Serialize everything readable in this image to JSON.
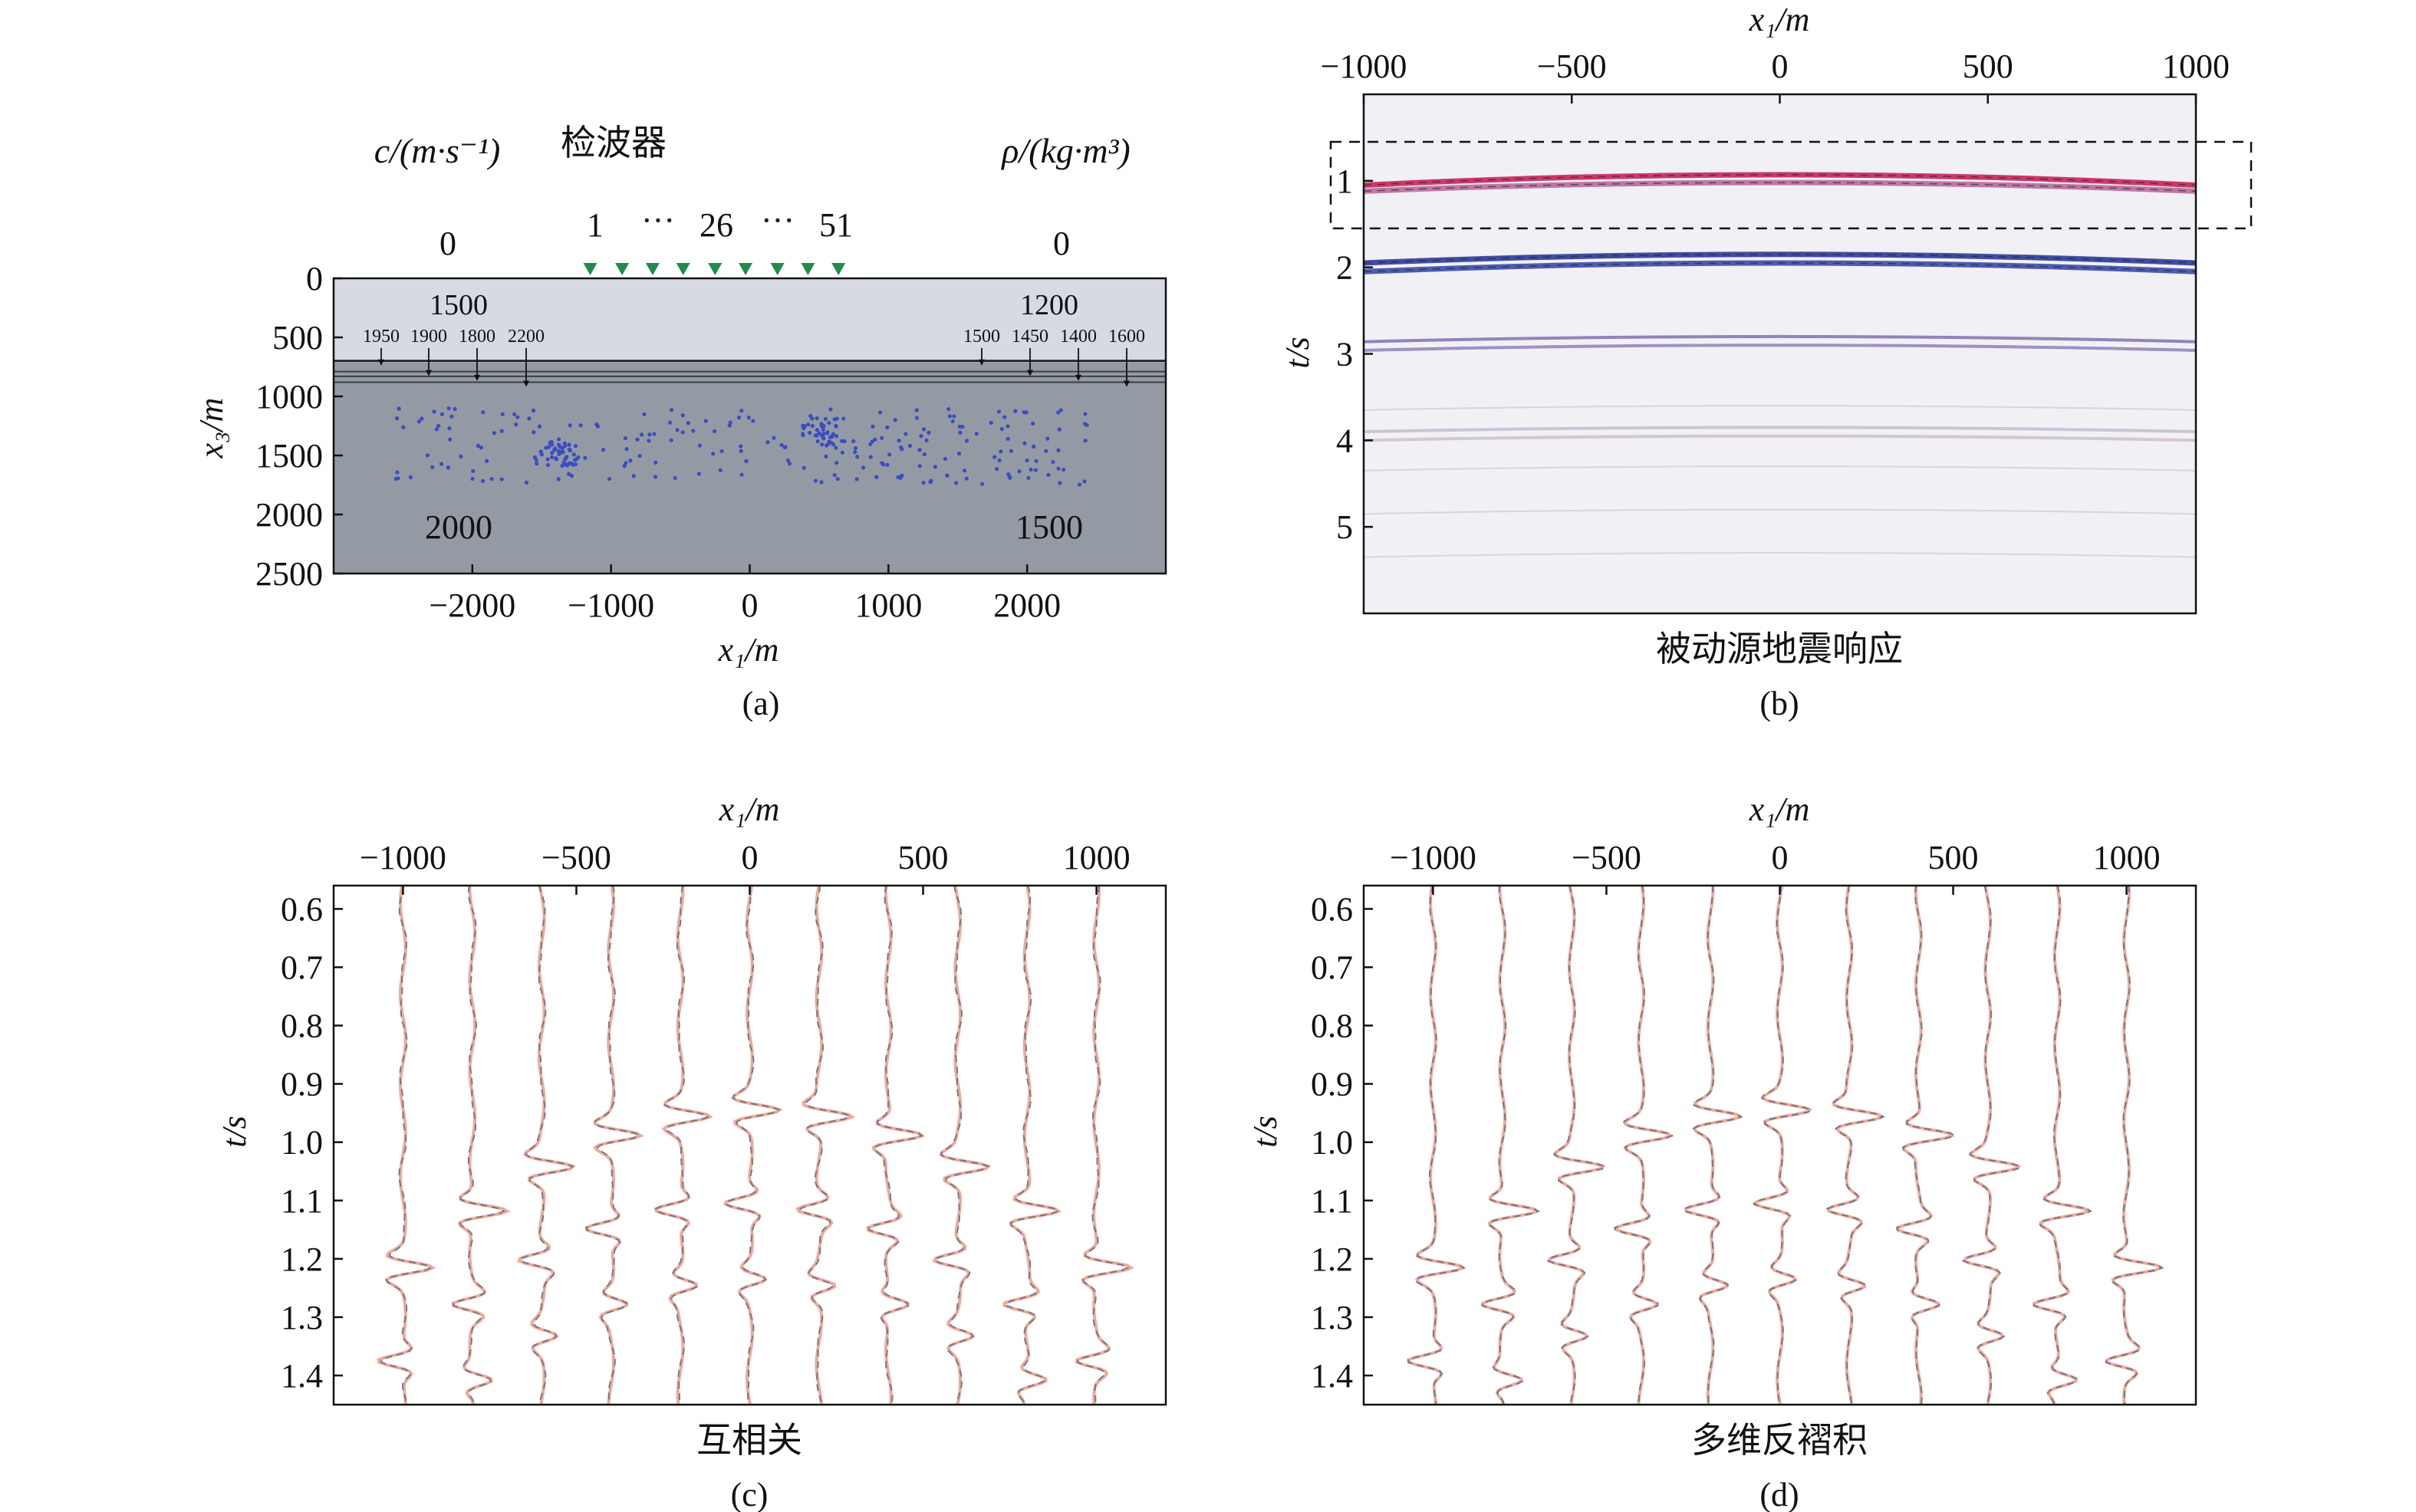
{
  "figure": {
    "panel_a": {
      "caption": "(a)",
      "left_header": "c/(m·s⁻¹)",
      "center_header": "检波器",
      "right_header": "ρ/(kg·m³)",
      "left_surface_value": "0",
      "right_surface_value": "0",
      "receiver_label_first": "1",
      "receiver_label_mid": "26",
      "receiver_label_last": "51",
      "ellipsis": "···",
      "receiver_color": "#1e8c4a",
      "layer1_left": "1500",
      "layer1_right": "1200",
      "interface_labels_left": [
        "1950",
        "1900",
        "1800",
        "2200"
      ],
      "interface_labels_right": [
        "1500",
        "1450",
        "1400",
        "1600"
      ],
      "halfspace_left": "2000",
      "halfspace_right": "1500",
      "xlabel": "x₁/m",
      "ylabel": "x₃/m",
      "upper_layer_color": "#d7dae2",
      "halfspace_color": "#939aa3",
      "source_color": "#3a4cc4"
    },
    "panel_b": {
      "caption": "(b)",
      "subtitle": "被动源地震响应",
      "xlabel": "x₁/m",
      "ylabel": "t/s"
    },
    "panel_c": {
      "caption": "(c)",
      "subtitle": "互相关",
      "xlabel": "x₁/m",
      "ylabel": "t/s"
    },
    "panel_d": {
      "caption": "(d)",
      "subtitle": "多维反褶积",
      "xlabel": "x₁/m",
      "ylabel": "t/s"
    }
  },
  "chart_data": [
    {
      "panel": "a",
      "type": "scatter",
      "xlim": [
        -3000,
        3000
      ],
      "ylim": [
        0,
        2500
      ],
      "y_inverted": true,
      "xticks": [
        -2000,
        -1000,
        0,
        1000,
        2000
      ],
      "xtick_labels": [
        "−2000",
        "−1000",
        "0",
        "1000",
        "2000"
      ],
      "yticks": [
        0,
        500,
        1000,
        1500,
        2000,
        2500
      ],
      "ytick_labels": [
        "0",
        "500",
        "1000",
        "1500",
        "2000",
        "2500"
      ],
      "receivers_x": [
        -1150,
        -920,
        -700,
        -480,
        -250,
        -30,
        200,
        420,
        640
      ],
      "interfaces_depth": [
        700,
        790,
        830,
        880
      ],
      "source_region": {
        "x": [
          -2550,
          2450
        ],
        "depth": [
          1100,
          1750
        ]
      },
      "source_clusters": [
        {
          "x": -1350,
          "depth": 1500
        },
        {
          "x": 500,
          "depth": 1300
        }
      ]
    },
    {
      "panel": "b",
      "type": "heatmap",
      "xlim": [
        -1000,
        1000
      ],
      "ylim": [
        0,
        6
      ],
      "y_inverted": true,
      "xticks": [
        -1000,
        -500,
        0,
        500,
        1000
      ],
      "xtick_labels": [
        "−1000",
        "−500",
        "0",
        "500",
        "1000"
      ],
      "yticks": [
        1,
        2,
        3,
        4,
        5
      ],
      "ytick_labels": [
        "1",
        "2",
        "3",
        "4",
        "5"
      ],
      "events": [
        {
          "t0": 0.93,
          "tedge": 1.05,
          "color": "#c8245a"
        },
        {
          "t0": 1.02,
          "tedge": 1.12,
          "color": "#b86a9c"
        },
        {
          "t0": 1.85,
          "tedge": 1.95,
          "color": "#2c3a9a"
        },
        {
          "t0": 1.95,
          "tedge": 2.05,
          "color": "#3c4aa8"
        },
        {
          "t0": 2.8,
          "tedge": 2.86,
          "color": "#6a55a0"
        },
        {
          "t0": 2.9,
          "tedge": 2.96,
          "color": "#7b68ac"
        },
        {
          "t0": 3.85,
          "tedge": 3.9,
          "color": "#b8b0c8"
        },
        {
          "t0": 3.95,
          "tedge": 4.0,
          "color": "#c8b4c4"
        }
      ],
      "box_t": [
        0.55,
        1.55
      ]
    },
    {
      "panel": "c",
      "type": "line",
      "xlim": [
        -1200,
        1200
      ],
      "ylim": [
        0.56,
        1.45
      ],
      "y_inverted": true,
      "xticks": [
        -1000,
        -500,
        0,
        500,
        1000
      ],
      "xtick_labels": [
        "−1000",
        "−500",
        "0",
        "500",
        "1000"
      ],
      "yticks": [
        0.6,
        0.7,
        0.8,
        0.9,
        1.0,
        1.1,
        1.2,
        1.3,
        1.4
      ],
      "ytick_labels": [
        "0.6",
        "0.7",
        "0.8",
        "0.9",
        "1.0",
        "1.1",
        "1.2",
        "1.3",
        "1.4"
      ],
      "trace_x": [
        -1000,
        -800,
        -600,
        -400,
        -200,
        0,
        200,
        400,
        600,
        800,
        1000
      ],
      "series": [
        {
          "style": "solid",
          "color": "#f0a898"
        },
        {
          "style": "dashed",
          "color": "#707a88"
        }
      ]
    },
    {
      "panel": "d",
      "type": "line",
      "xlim": [
        -1200,
        1200
      ],
      "ylim": [
        0.56,
        1.45
      ],
      "y_inverted": true,
      "xticks": [
        -1000,
        -500,
        0,
        500,
        1000
      ],
      "xtick_labels": [
        "−1000",
        "−500",
        "0",
        "500",
        "1000"
      ],
      "yticks": [
        0.6,
        0.7,
        0.8,
        0.9,
        1.0,
        1.1,
        1.2,
        1.3,
        1.4
      ],
      "ytick_labels": [
        "0.6",
        "0.7",
        "0.8",
        "0.9",
        "1.0",
        "1.1",
        "1.2",
        "1.3",
        "1.4"
      ],
      "trace_x": [
        -1000,
        -800,
        -600,
        -400,
        -200,
        0,
        200,
        400,
        600,
        800,
        1000
      ],
      "series": [
        {
          "style": "solid",
          "color": "#f0a898"
        },
        {
          "style": "dashed",
          "color": "#707a88"
        }
      ]
    }
  ]
}
